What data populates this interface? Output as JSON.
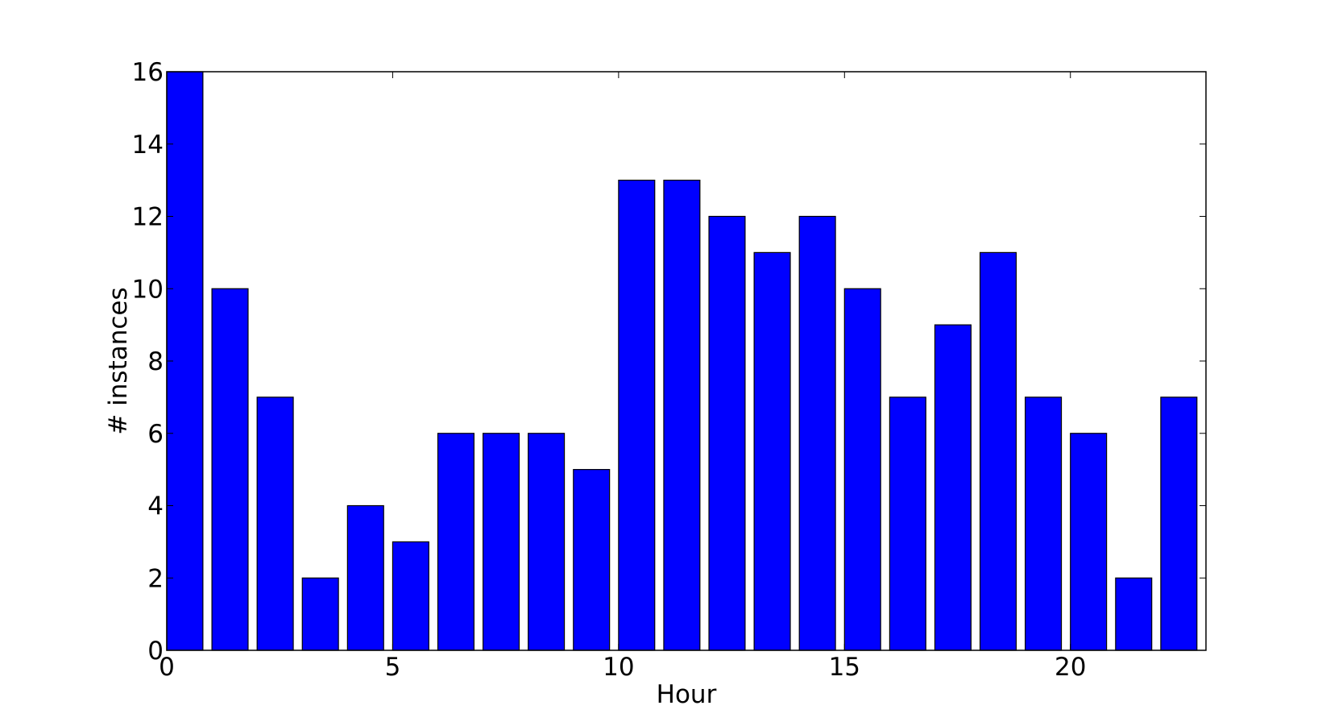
{
  "chart_data": {
    "type": "bar",
    "title": "",
    "xlabel": "Hour",
    "ylabel": "# instances",
    "x": [
      0,
      1,
      2,
      3,
      4,
      5,
      6,
      7,
      8,
      9,
      10,
      11,
      12,
      13,
      14,
      15,
      16,
      17,
      18,
      19,
      20,
      21,
      22
    ],
    "values": [
      16,
      10,
      7,
      2,
      4,
      3,
      6,
      6,
      6,
      5,
      13,
      13,
      12,
      11,
      12,
      10,
      7,
      9,
      11,
      7,
      6,
      2,
      7
    ],
    "bar_width": 0.8,
    "xlim": [
      0,
      23
    ],
    "ylim": [
      0,
      16
    ],
    "xticks": [
      0,
      5,
      10,
      15,
      20
    ],
    "yticks": [
      0,
      2,
      4,
      6,
      8,
      10,
      12,
      14,
      16
    ],
    "grid": false,
    "legend": "none",
    "colors": {
      "bar_fill": "#0000ff",
      "bar_edge": "#000000",
      "axes": "#000000",
      "background": "#ffffff"
    }
  }
}
